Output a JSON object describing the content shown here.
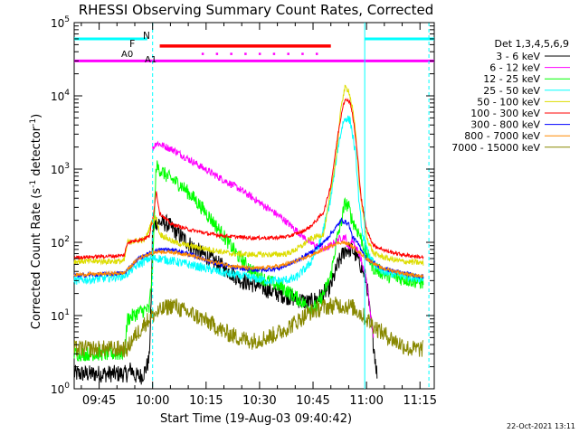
{
  "chart_data": {
    "type": "line",
    "title": "RHESSI Observing Summary Count Rates, Corrected",
    "xlabel": "Start Time (19-Aug-03 09:40:42)",
    "ylabel_main": "Corrected Count Rate (s",
    "ylabel_sup1": "-1",
    "ylabel_mid": " detector",
    "ylabel_sup2": "-1",
    "ylabel_end": ")",
    "x_unit": "minutes after 09:40",
    "xlim": [
      -2,
      99
    ],
    "ylim": [
      1,
      100000
    ],
    "y_scale": "log",
    "x_ticks": [
      {
        "t": 5,
        "label": "09:45"
      },
      {
        "t": 20,
        "label": "10:00"
      },
      {
        "t": 35,
        "label": "10:15"
      },
      {
        "t": 50,
        "label": "10:30"
      },
      {
        "t": 65,
        "label": "10:45"
      },
      {
        "t": 80,
        "label": "11:00"
      },
      {
        "t": 95,
        "label": "11:15"
      }
    ],
    "y_ticks": [
      {
        "v": 1,
        "base": "10",
        "exp": "0"
      },
      {
        "v": 10,
        "base": "10",
        "exp": "1"
      },
      {
        "v": 100,
        "base": "10",
        "exp": "2"
      },
      {
        "v": 1000,
        "base": "10",
        "exp": "3"
      },
      {
        "v": 10000,
        "base": "10",
        "exp": "4"
      },
      {
        "v": 100000,
        "base": "10",
        "exp": "5"
      }
    ],
    "legend_title": "Det 1,3,4,5,6,9",
    "series": [
      {
        "name": "3 - 6 keV",
        "color": "#000000",
        "noise": 0.12,
        "points": [
          [
            -2,
            1.6
          ],
          [
            13,
            1.6
          ],
          [
            14,
            1.9
          ],
          [
            15,
            1.5
          ],
          [
            17,
            1.5
          ],
          [
            18,
            1.8
          ],
          [
            19,
            2.5
          ],
          [
            19.5,
            10
          ],
          [
            20,
            150
          ],
          [
            21,
            190
          ],
          [
            24,
            180
          ],
          [
            28,
            120
          ],
          [
            32,
            80
          ],
          [
            36,
            60
          ],
          [
            40,
            45
          ],
          [
            45,
            30
          ],
          [
            50,
            25
          ],
          [
            55,
            20
          ],
          [
            60,
            17
          ],
          [
            64,
            15
          ],
          [
            67,
            18
          ],
          [
            70,
            25
          ],
          [
            72,
            50
          ],
          [
            74,
            80
          ],
          [
            76,
            80
          ],
          [
            78,
            55
          ],
          [
            80,
            30
          ],
          [
            81,
            10
          ],
          [
            82,
            4
          ],
          [
            83,
            1.5
          ]
        ]
      },
      {
        "name": "6 - 12 keV",
        "color": "#ff00ff",
        "noise": 0.05,
        "points": [
          [
            20,
            1900
          ],
          [
            21,
            2300
          ],
          [
            26,
            1800
          ],
          [
            32,
            1200
          ],
          [
            38,
            800
          ],
          [
            44,
            550
          ],
          [
            50,
            350
          ],
          [
            56,
            220
          ],
          [
            60,
            150
          ],
          [
            64,
            100
          ],
          [
            68,
            80
          ],
          [
            70,
            90
          ],
          [
            72,
            110
          ],
          [
            74,
            120
          ],
          [
            75,
            80
          ],
          [
            76,
            110
          ],
          [
            77,
            85
          ],
          [
            78,
            70
          ],
          [
            80,
            30
          ],
          [
            81,
            12
          ],
          [
            82,
            5
          ]
        ]
      },
      {
        "name": "12 - 25 keV",
        "color": "#00ff00",
        "noise": 0.1,
        "points": [
          [
            -2,
            3
          ],
          [
            12,
            3
          ],
          [
            13,
            9
          ],
          [
            16,
            11
          ],
          [
            18,
            12
          ],
          [
            19,
            12
          ],
          [
            20,
            45
          ],
          [
            21,
            1100
          ],
          [
            24,
            800
          ],
          [
            28,
            600
          ],
          [
            32,
            380
          ],
          [
            36,
            220
          ],
          [
            40,
            120
          ],
          [
            44,
            65
          ],
          [
            48,
            40
          ],
          [
            52,
            30
          ],
          [
            56,
            25
          ],
          [
            60,
            18
          ],
          [
            64,
            13
          ],
          [
            66,
            13
          ],
          [
            68,
            20
          ],
          [
            70,
            35
          ],
          [
            71.5,
            100
          ],
          [
            73,
            200
          ],
          [
            74,
            350
          ],
          [
            75,
            300
          ],
          [
            76,
            200
          ],
          [
            78,
            130
          ],
          [
            80,
            70
          ],
          [
            82,
            45
          ],
          [
            86,
            35
          ],
          [
            90,
            32
          ],
          [
            96,
            28
          ]
        ]
      },
      {
        "name": "25 - 50 keV",
        "color": "#00ffff",
        "noise": 0.06,
        "points": [
          [
            -2,
            30
          ],
          [
            6,
            32
          ],
          [
            12,
            35
          ],
          [
            16,
            50
          ],
          [
            19,
            60
          ],
          [
            22,
            60
          ],
          [
            26,
            55
          ],
          [
            30,
            50
          ],
          [
            34,
            45
          ],
          [
            40,
            38
          ],
          [
            46,
            34
          ],
          [
            52,
            30
          ],
          [
            56,
            30
          ],
          [
            60,
            32
          ],
          [
            64,
            50
          ],
          [
            67,
            100
          ],
          [
            70,
            400
          ],
          [
            72,
            2000
          ],
          [
            73.5,
            4500
          ],
          [
            74.5,
            5000
          ],
          [
            75.5,
            4500
          ],
          [
            77,
            1500
          ],
          [
            78,
            300
          ],
          [
            79,
            120
          ],
          [
            81,
            60
          ],
          [
            84,
            40
          ],
          [
            90,
            35
          ],
          [
            96,
            32
          ]
        ]
      },
      {
        "name": "50 - 100 keV",
        "color": "#dddd00",
        "noise": 0.04,
        "points": [
          [
            -2,
            55
          ],
          [
            12,
            55
          ],
          [
            13,
            100
          ],
          [
            18,
            110
          ],
          [
            19,
            150
          ],
          [
            20,
            200
          ],
          [
            21,
            220
          ],
          [
            22,
            130
          ],
          [
            26,
            100
          ],
          [
            30,
            90
          ],
          [
            36,
            80
          ],
          [
            42,
            70
          ],
          [
            48,
            68
          ],
          [
            54,
            68
          ],
          [
            58,
            70
          ],
          [
            62,
            90
          ],
          [
            64,
            110
          ],
          [
            66,
            120
          ],
          [
            68,
            130
          ],
          [
            70,
            500
          ],
          [
            71.5,
            1500
          ],
          [
            73,
            8000
          ],
          [
            74,
            13000
          ],
          [
            75,
            12000
          ],
          [
            76,
            7000
          ],
          [
            77,
            3000
          ],
          [
            78,
            600
          ],
          [
            79,
            250
          ],
          [
            80,
            120
          ],
          [
            82,
            70
          ],
          [
            86,
            60
          ],
          [
            90,
            55
          ],
          [
            96,
            52
          ]
        ]
      },
      {
        "name": "100 - 300 keV",
        "color": "#ff0000",
        "noise": 0.025,
        "points": [
          [
            -2,
            62
          ],
          [
            12,
            66
          ],
          [
            13,
            100
          ],
          [
            17,
            110
          ],
          [
            19,
            120
          ],
          [
            20,
            200
          ],
          [
            21,
            500
          ],
          [
            22,
            250
          ],
          [
            25,
            180
          ],
          [
            30,
            150
          ],
          [
            36,
            130
          ],
          [
            42,
            120
          ],
          [
            48,
            115
          ],
          [
            54,
            115
          ],
          [
            58,
            120
          ],
          [
            62,
            140
          ],
          [
            64,
            160
          ],
          [
            66,
            200
          ],
          [
            68,
            260
          ],
          [
            70,
            600
          ],
          [
            72,
            3000
          ],
          [
            73.5,
            8000
          ],
          [
            74.5,
            9000
          ],
          [
            75.5,
            8000
          ],
          [
            76.5,
            4000
          ],
          [
            77.5,
            1500
          ],
          [
            78.5,
            400
          ],
          [
            80,
            150
          ],
          [
            82,
            90
          ],
          [
            86,
            75
          ],
          [
            90,
            68
          ],
          [
            96,
            62
          ]
        ]
      },
      {
        "name": "300 - 800 keV",
        "color": "#0000ff",
        "noise": 0.03,
        "points": [
          [
            -2,
            35
          ],
          [
            12,
            38
          ],
          [
            16,
            60
          ],
          [
            19,
            70
          ],
          [
            22,
            80
          ],
          [
            26,
            78
          ],
          [
            30,
            70
          ],
          [
            36,
            55
          ],
          [
            42,
            46
          ],
          [
            48,
            42
          ],
          [
            52,
            42
          ],
          [
            56,
            45
          ],
          [
            60,
            55
          ],
          [
            64,
            70
          ],
          [
            68,
            100
          ],
          [
            71,
            150
          ],
          [
            73,
            200
          ],
          [
            75,
            180
          ],
          [
            76,
            120
          ],
          [
            78,
            90
          ],
          [
            80,
            60
          ],
          [
            84,
            45
          ],
          [
            90,
            38
          ],
          [
            96,
            34
          ]
        ]
      },
      {
        "name": "800 - 7000 keV",
        "color": "#ff8800",
        "noise": 0.025,
        "points": [
          [
            -2,
            36
          ],
          [
            12,
            38
          ],
          [
            16,
            60
          ],
          [
            19,
            70
          ],
          [
            22,
            75
          ],
          [
            26,
            73
          ],
          [
            30,
            68
          ],
          [
            36,
            55
          ],
          [
            42,
            48
          ],
          [
            48,
            44
          ],
          [
            52,
            45
          ],
          [
            56,
            48
          ],
          [
            60,
            55
          ],
          [
            64,
            65
          ],
          [
            68,
            80
          ],
          [
            71,
            95
          ],
          [
            73,
            100
          ],
          [
            75,
            95
          ],
          [
            77,
            80
          ],
          [
            80,
            60
          ],
          [
            84,
            45
          ],
          [
            90,
            38
          ],
          [
            96,
            34
          ]
        ]
      },
      {
        "name": "7000 - 15000 keV",
        "color": "#888800",
        "noise": 0.12,
        "points": [
          [
            -2,
            3.5
          ],
          [
            13,
            3.5
          ],
          [
            14,
            4.5
          ],
          [
            16,
            6
          ],
          [
            18,
            8
          ],
          [
            20,
            10
          ],
          [
            24,
            13
          ],
          [
            26,
            14
          ],
          [
            28,
            12
          ],
          [
            32,
            10
          ],
          [
            36,
            8
          ],
          [
            40,
            6
          ],
          [
            44,
            5
          ],
          [
            48,
            4.5
          ],
          [
            52,
            5
          ],
          [
            56,
            6
          ],
          [
            60,
            8
          ],
          [
            64,
            11
          ],
          [
            68,
            13
          ],
          [
            72,
            14
          ],
          [
            76,
            13
          ],
          [
            78,
            11
          ],
          [
            80,
            9
          ],
          [
            84,
            6
          ],
          [
            88,
            4.5
          ],
          [
            92,
            3.5
          ],
          [
            96,
            3.5
          ]
        ]
      }
    ],
    "annotations": {
      "N": "N",
      "F": "F",
      "A0": "A0",
      "A1": "A1"
    },
    "flag_levels": {
      "night": 60000,
      "flare": 48000,
      "attenuator": 30000
    },
    "flag_spans": {
      "night": [
        [
          -2,
          18.5
        ],
        [
          79.5,
          99
        ]
      ],
      "flare": [
        [
          22,
          70
        ]
      ],
      "attenuator": [
        [
          -2,
          99
        ]
      ],
      "attenuator_dots": [
        34,
        38,
        42,
        46,
        50,
        54,
        58,
        62,
        66
      ]
    },
    "vlines": {
      "dashed_cyan": [
        20,
        97.5
      ],
      "solid_cyan": [
        79.5
      ]
    }
  },
  "footer": {
    "timestamp": "22-Oct-2021 13:11"
  }
}
